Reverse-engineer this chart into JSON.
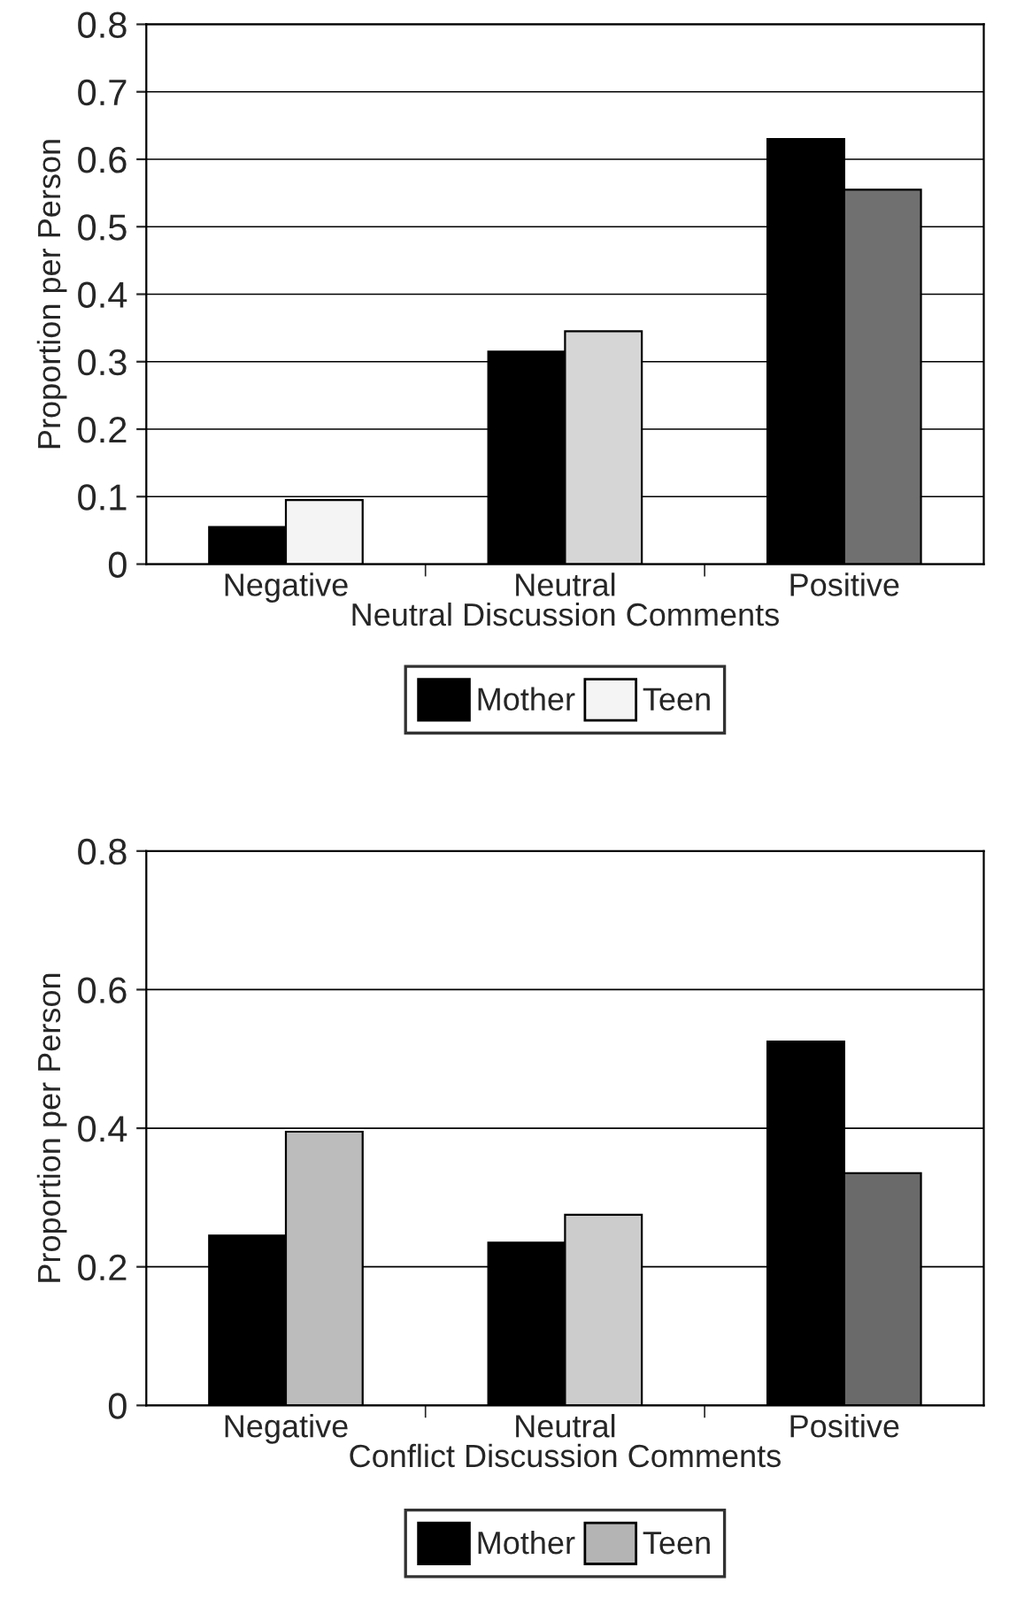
{
  "chart_data": [
    {
      "type": "bar",
      "xlabel": "Neutral Discussion Comments",
      "ylabel": "Proportion per Person",
      "categories": [
        "Negative",
        "Neutral",
        "Positive"
      ],
      "series": [
        {
          "name": "Mother",
          "color": "#000000",
          "values": [
            0.055,
            0.315,
            0.63
          ]
        },
        {
          "name": "Teen",
          "color": "#f4f4f4",
          "colors": [
            "#f4f4f4",
            "#d6d6d6",
            "#707070"
          ],
          "values": [
            0.095,
            0.345,
            0.555
          ]
        }
      ],
      "ylim": [
        0,
        0.8
      ],
      "yticks": [
        0,
        0.1,
        0.2,
        0.3,
        0.4,
        0.5,
        0.6,
        0.7,
        0.8
      ],
      "grid": "y",
      "legend": "bottom"
    },
    {
      "type": "bar",
      "xlabel": "Conflict Discussion Comments",
      "ylabel": "Proportion per Person",
      "categories": [
        "Negative",
        "Neutral",
        "Positive"
      ],
      "series": [
        {
          "name": "Mother",
          "color": "#000000",
          "values": [
            0.245,
            0.235,
            0.525
          ]
        },
        {
          "name": "Teen",
          "color": "#b4b4b4",
          "colors": [
            "#bcbcbc",
            "#cccccc",
            "#6a6a6a"
          ],
          "values": [
            0.395,
            0.275,
            0.335
          ]
        }
      ],
      "ylim": [
        0,
        0.8
      ],
      "yticks": [
        0,
        0.2,
        0.4,
        0.6,
        0.8
      ],
      "grid": "y",
      "legend": "bottom"
    }
  ]
}
